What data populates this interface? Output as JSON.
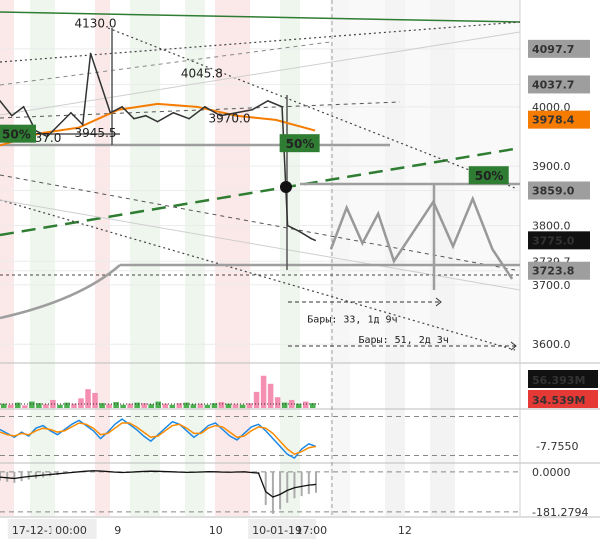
{
  "chart_data": [
    {
      "type": "line",
      "panel": "price",
      "ylim": [
        3570,
        4180
      ],
      "yticks": [
        {
          "label": "4097.7",
          "value": 4097.7,
          "style": "tag"
        },
        {
          "label": "4037.7",
          "value": 4037.7,
          "style": "tag"
        },
        {
          "label": "4000.0",
          "value": 4000,
          "style": "plain"
        },
        {
          "label": "3978.4",
          "value": 3978.4,
          "style": "orange"
        },
        {
          "label": "3900.0",
          "value": 3900,
          "style": "plain"
        },
        {
          "label": "3859.0",
          "value": 3859,
          "style": "tag"
        },
        {
          "label": "3800.0",
          "value": 3800,
          "style": "plain"
        },
        {
          "label": "3775.0",
          "value": 3775,
          "style": "dark"
        },
        {
          "label": "3739.7",
          "value": 3739.7,
          "style": "plain"
        },
        {
          "label": "3723.8",
          "value": 3723.8,
          "style": "tag"
        },
        {
          "label": "3700.0",
          "value": 3700,
          "style": "plain"
        },
        {
          "label": "3600.0",
          "value": 3600,
          "style": "plain"
        }
      ],
      "annotations": [
        {
          "text": "4130.0",
          "x": 1.2,
          "y": 4130
        },
        {
          "text": "4045.8",
          "x": 2.55,
          "y": 4045.8
        },
        {
          "text": "3970.0",
          "x": 2.9,
          "y": 3970
        },
        {
          "text": "3937.0",
          "x": 0.5,
          "y": 3937
        },
        {
          "text": "3945.5",
          "x": 1.2,
          "y": 3945.5
        }
      ],
      "fib_labels": [
        {
          "text": "50%",
          "x": 0,
          "y": 3948
        },
        {
          "text": "50%",
          "x": 3.6,
          "y": 3932
        },
        {
          "text": "50%",
          "x": 6.0,
          "y": 3878
        }
      ],
      "measure_labels": [
        {
          "text": "Бары: 33, 1д 9ч",
          "x": 3.9,
          "y": 3640
        },
        {
          "text": "Бары: 51, 2д 3ч",
          "x": 4.55,
          "y": 3605
        }
      ],
      "price_series": [
        {
          "x": 0.0,
          "y": 4010
        },
        {
          "x": 0.15,
          "y": 3985
        },
        {
          "x": 0.3,
          "y": 4000
        },
        {
          "x": 0.45,
          "y": 3960
        },
        {
          "x": 0.6,
          "y": 3950
        },
        {
          "x": 0.75,
          "y": 3970
        },
        {
          "x": 0.9,
          "y": 3990
        },
        {
          "x": 1.05,
          "y": 3970
        },
        {
          "x": 1.15,
          "y": 4090
        },
        {
          "x": 1.25,
          "y": 4050
        },
        {
          "x": 1.4,
          "y": 3990
        },
        {
          "x": 1.55,
          "y": 4000
        },
        {
          "x": 1.7,
          "y": 3980
        },
        {
          "x": 1.85,
          "y": 3985
        },
        {
          "x": 2.0,
          "y": 3975
        },
        {
          "x": 2.2,
          "y": 3990
        },
        {
          "x": 2.4,
          "y": 3980
        },
        {
          "x": 2.6,
          "y": 4000
        },
        {
          "x": 2.8,
          "y": 3985
        },
        {
          "x": 3.0,
          "y": 3990
        },
        {
          "x": 3.2,
          "y": 3995
        },
        {
          "x": 3.4,
          "y": 4010
        },
        {
          "x": 3.58,
          "y": 4000
        },
        {
          "x": 3.65,
          "y": 3800
        },
        {
          "x": 3.8,
          "y": 3790
        },
        {
          "x": 3.95,
          "y": 3778
        },
        {
          "x": 4.0,
          "y": 3775
        }
      ],
      "ma_series": [
        {
          "x": 0.0,
          "y": 3935
        },
        {
          "x": 0.5,
          "y": 3955
        },
        {
          "x": 1.0,
          "y": 3965
        },
        {
          "x": 1.5,
          "y": 3995
        },
        {
          "x": 2.0,
          "y": 4005
        },
        {
          "x": 2.5,
          "y": 4000
        },
        {
          "x": 3.0,
          "y": 3985
        },
        {
          "x": 3.5,
          "y": 3978
        },
        {
          "x": 4.0,
          "y": 3960
        }
      ],
      "projection": [
        {
          "x": 4.2,
          "y": 3760
        },
        {
          "x": 4.4,
          "y": 3830
        },
        {
          "x": 4.6,
          "y": 3770
        },
        {
          "x": 4.8,
          "y": 3820
        },
        {
          "x": 5.0,
          "y": 3740
        },
        {
          "x": 5.25,
          "y": 3790
        },
        {
          "x": 5.5,
          "y": 3840
        },
        {
          "x": 5.75,
          "y": 3765
        },
        {
          "x": 6.0,
          "y": 3845
        },
        {
          "x": 6.25,
          "y": 3760
        },
        {
          "x": 6.5,
          "y": 3710
        }
      ],
      "xlim": [
        0,
        6.6
      ]
    },
    {
      "type": "bar",
      "panel": "volume",
      "ylim": [
        0,
        80
      ],
      "yticks": [
        {
          "label": "56.393M",
          "value": 56.393,
          "style": "dark"
        },
        {
          "label": "34.539M",
          "value": 34.539,
          "style": "red"
        }
      ],
      "values": [
        8,
        6,
        10,
        5,
        12,
        9,
        7,
        15,
        6,
        10,
        8,
        18,
        35,
        28,
        9,
        7,
        11,
        6,
        8,
        10,
        9,
        7,
        12,
        8,
        6,
        9,
        10,
        7,
        8,
        6,
        9,
        11,
        8,
        7,
        6,
        9,
        30,
        60,
        45,
        20,
        10,
        15,
        8,
        12,
        9
      ],
      "colors": [
        "g",
        "r",
        "g",
        "r",
        "g",
        "g",
        "r",
        "r",
        "g",
        "g",
        "r",
        "r",
        "r",
        "r",
        "g",
        "r",
        "g",
        "g",
        "r",
        "g",
        "r",
        "g",
        "g",
        "r",
        "g",
        "r",
        "g",
        "g",
        "r",
        "g",
        "g",
        "r",
        "g",
        "r",
        "g",
        "r",
        "r",
        "r",
        "r",
        "r",
        "g",
        "r",
        "g",
        "r",
        "g"
      ]
    },
    {
      "type": "line",
      "panel": "stochastic",
      "ylim": [
        -20,
        20
      ],
      "yticks": [
        {
          "label": "-7.7550",
          "value": -7.755,
          "style": "plain"
        }
      ],
      "series": [
        {
          "values": [
            5,
            2,
            -1,
            3,
            0,
            6,
            8,
            4,
            1,
            5,
            9,
            12,
            8,
            4,
            -2,
            3,
            9,
            13,
            9,
            5,
            0,
            -4,
            1,
            6,
            11,
            9,
            4,
            -1,
            3,
            8,
            10,
            5,
            0,
            -3,
            2,
            7,
            9,
            4,
            -2,
            -8,
            -14,
            -17,
            -10,
            -6,
            -8
          ]
        },
        {
          "values": [
            3,
            1,
            0,
            2,
            1,
            4,
            6,
            5,
            3,
            4,
            7,
            10,
            9,
            6,
            1,
            2,
            6,
            10,
            10,
            7,
            3,
            -1,
            0,
            4,
            8,
            9,
            6,
            2,
            2,
            6,
            8,
            7,
            3,
            -1,
            0,
            4,
            7,
            6,
            2,
            -4,
            -10,
            -14,
            -12,
            -9,
            -8
          ]
        }
      ]
    },
    {
      "type": "line",
      "panel": "oscillator",
      "ylim": [
        -200,
        40
      ],
      "yticks": [
        {
          "label": "0.0000",
          "value": 0,
          "style": "plain"
        },
        {
          "label": "-181.2794",
          "value": -181.2794,
          "style": "plain"
        }
      ],
      "values": [
        -40,
        -45,
        -50,
        -42,
        -35,
        -30,
        -25,
        -20,
        -15,
        -10,
        -5,
        0,
        5,
        8,
        6,
        2,
        -2,
        -5,
        -3,
        0,
        3,
        5,
        4,
        2,
        0,
        -2,
        -4,
        -3,
        -1,
        1,
        0,
        -2,
        -3,
        -1,
        0,
        -5,
        -10,
        -150,
        -190,
        -170,
        -140,
        -120,
        -110,
        -100,
        -95
      ]
    }
  ],
  "x_axis": [
    {
      "label": "17-12-18",
      "x": 0.15,
      "style": "dark"
    },
    {
      "label": "00:00",
      "x": 0.7,
      "style": "dark"
    },
    {
      "label": "9",
      "x": 1.45,
      "style": "plain"
    },
    {
      "label": "10",
      "x": 2.65,
      "style": "plain"
    },
    {
      "label": "10-01-19",
      "x": 3.2,
      "style": "dark"
    },
    {
      "label": "17:00",
      "x": 3.75,
      "style": "plain"
    },
    {
      "label": "12",
      "x": 5.05,
      "style": "plain"
    }
  ],
  "colors": {
    "green_trend": "#2e7d32",
    "orange_ma": "#f57c00",
    "price_line": "#333333",
    "projection": "#999999",
    "tag_bg": "#9e9e9e",
    "dark_bg": "#111111",
    "red_bg": "#e53935",
    "fib_bg": "#2e7d32",
    "vol_green": "#4caf50",
    "vol_red": "#f48fb1",
    "stoch_a": "#1e88e5",
    "stoch_b": "#fb8c00"
  }
}
